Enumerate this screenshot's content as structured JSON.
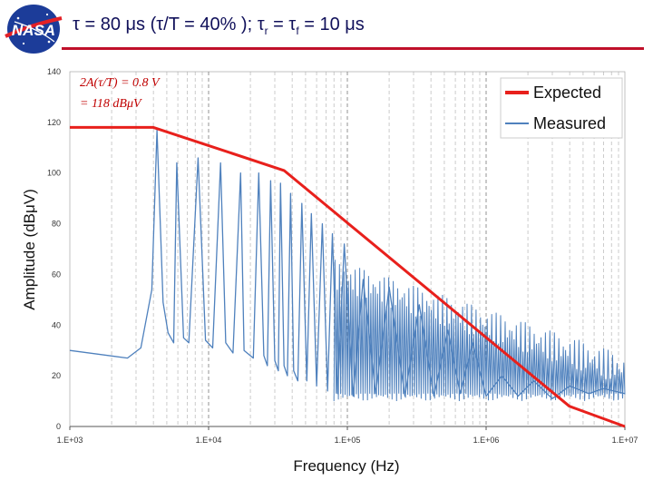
{
  "title": {
    "part1": "τ = 80 μs (τ/T = 40% ); τ",
    "sub_r": "r",
    "part2": " = τ",
    "sub_f": "f",
    "part3": "  = 10 μs"
  },
  "logo": {
    "text": "NASA",
    "icon": "nasa-meatball-logo"
  },
  "colors": {
    "expected": "#e8201c",
    "measured": "#4f81bd",
    "title": "#10105a",
    "rule": "#c0102a"
  },
  "chart_data": {
    "type": "line",
    "x_scale": "log",
    "xlim": [
      1000,
      10000000
    ],
    "ylim": [
      0,
      140
    ],
    "xticks": [
      1000,
      10000,
      100000,
      1000000,
      10000000
    ],
    "xtick_labels": [
      "1.E+03",
      "1.E+04",
      "1.E+05",
      "1.E+06",
      "1.E+07"
    ],
    "yticks": [
      0,
      20,
      40,
      60,
      80,
      100,
      120,
      140
    ],
    "ytick_labels": [
      "0",
      "20",
      "40",
      "60",
      "80",
      "100",
      "120",
      "140"
    ],
    "xlabel": "Frequency (Hz)",
    "ylabel": "Amplitude (dBμV)",
    "grid": "vertical dashed at log decades",
    "legend_position": "top-right",
    "annotation": {
      "line1": "2A(τ/T) = 0.8 V",
      "line2": "= 118 dBμV"
    },
    "series": [
      {
        "name": "Expected",
        "x": [
          1000,
          4000,
          35000,
          3980000,
          10000000
        ],
        "y": [
          118,
          118,
          101,
          8,
          0
        ]
      },
      {
        "name": "Measured",
        "x": [
          1000,
          2600,
          3250,
          3900,
          4250,
          4700,
          5100,
          5600,
          5900,
          6600,
          7200,
          8400,
          9500,
          10700,
          12200,
          13300,
          15000,
          17000,
          18000,
          21000,
          23000,
          25000,
          26500,
          28000,
          30000,
          31800,
          33000,
          35000,
          37000,
          39000,
          41000,
          44000,
          47000,
          51000,
          55000,
          60000,
          66000,
          72000,
          78000,
          85000,
          95000,
          110000,
          130000,
          160000,
          200000,
          260000,
          330000,
          420000,
          530000,
          650000,
          800000,
          1000000,
          1300000,
          1700000,
          2200000,
          3000000,
          4000000,
          5500000,
          7000000,
          10000000
        ],
        "y": [
          30,
          27,
          31,
          54,
          117,
          49,
          37,
          33,
          104,
          35,
          33,
          106,
          34,
          31,
          104,
          33,
          29,
          100,
          30,
          27,
          100,
          28,
          24,
          97,
          26,
          22,
          96,
          24,
          20,
          92,
          22,
          18,
          88,
          18,
          84,
          16,
          80,
          14,
          76,
          13,
          72,
          12,
          58,
          13,
          55,
          12,
          48,
          12,
          38,
          13,
          33,
          12,
          20,
          12,
          18,
          11,
          16,
          13,
          15,
          13
        ]
      }
    ]
  }
}
